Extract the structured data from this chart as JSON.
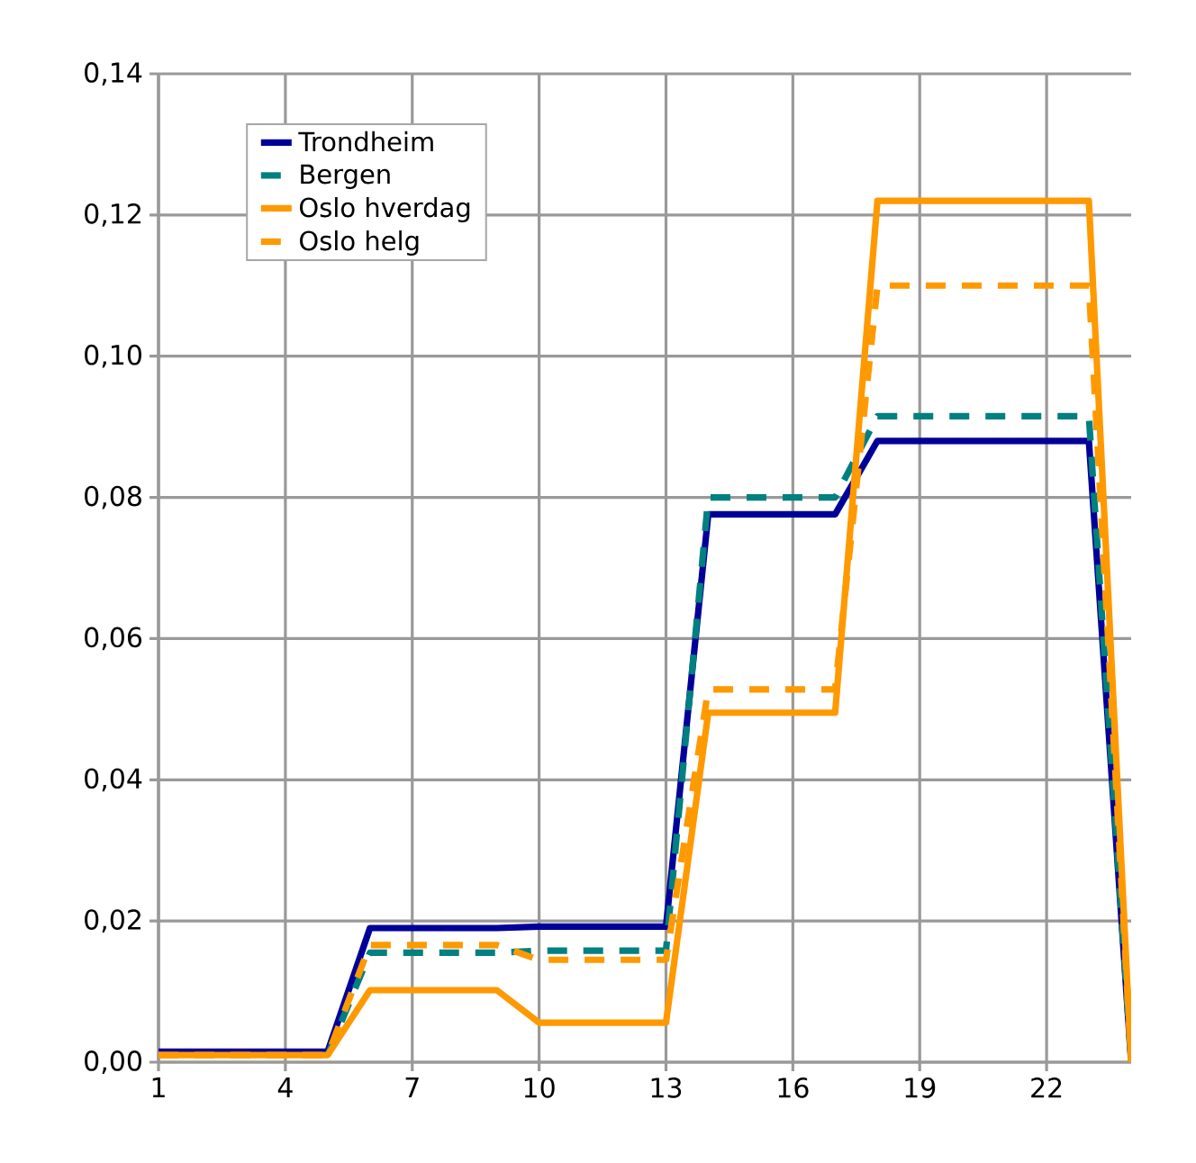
{
  "chart_data": {
    "type": "line",
    "x": [
      1,
      2,
      3,
      4,
      5,
      6,
      7,
      8,
      9,
      10,
      11,
      12,
      13,
      14,
      15,
      16,
      17,
      18,
      19,
      20,
      21,
      22,
      23,
      24
    ],
    "series": [
      {
        "name": "Trondheim",
        "color": "#000099",
        "line_style": "solid",
        "values": [
          0.0015,
          0.0015,
          0.0015,
          0.0015,
          0.0015,
          0.019,
          0.019,
          0.019,
          0.019,
          0.0192,
          0.0192,
          0.0192,
          0.0192,
          0.0776,
          0.0776,
          0.0776,
          0.0776,
          0.088,
          0.088,
          0.088,
          0.088,
          0.088,
          0.088,
          0
        ]
      },
      {
        "name": "Bergen",
        "color": "#008080",
        "line_style": "dashed",
        "values": [
          null,
          null,
          null,
          null,
          0.001,
          0.0155,
          0.0155,
          0.0155,
          0.0155,
          0.0158,
          0.0158,
          0.0158,
          0.0158,
          0.08,
          0.08,
          0.08,
          0.08,
          0.0915,
          0.0915,
          0.0915,
          0.0915,
          0.0915,
          0.0915,
          0
        ]
      },
      {
        "name": "Oslo hverdag",
        "color": "#ff9900",
        "line_style": "solid",
        "values": [
          0.001,
          0.001,
          0.001,
          0.001,
          0.001,
          0.0102,
          0.0102,
          0.0102,
          0.0102,
          0.0056,
          0.0056,
          0.0056,
          0.0056,
          0.0495,
          0.0495,
          0.0495,
          0.0495,
          0.122,
          0.122,
          0.122,
          0.122,
          0.122,
          0.122,
          0
        ]
      },
      {
        "name": "Oslo helg",
        "color": "#ff9900",
        "line_style": "dashed",
        "values": [
          0.001,
          0.001,
          0.001,
          0.001,
          0.001,
          0.0166,
          0.0166,
          0.0166,
          0.0166,
          0.0145,
          0.0145,
          0.0145,
          0.0145,
          0.0528,
          0.0528,
          0.0528,
          0.0528,
          0.11,
          0.11,
          0.11,
          0.11,
          0.11,
          0.11,
          0
        ]
      }
    ],
    "xlim": [
      1,
      24
    ],
    "xticks": [
      1,
      4,
      7,
      10,
      13,
      16,
      19,
      22
    ],
    "ylim": [
      0,
      0.14
    ],
    "yticks": [
      {
        "value": 0,
        "label": "0,00"
      },
      {
        "value": 0.02,
        "label": "0,02"
      },
      {
        "value": 0.04,
        "label": "0,04"
      },
      {
        "value": 0.06,
        "label": "0,06"
      },
      {
        "value": 0.08,
        "label": "0,08"
      },
      {
        "value": 0.1,
        "label": "0,10"
      },
      {
        "value": 0.12,
        "label": "0,12"
      },
      {
        "value": 0.14,
        "label": "0,14"
      }
    ],
    "grid": true,
    "legend": "top left",
    "marker": "none"
  }
}
